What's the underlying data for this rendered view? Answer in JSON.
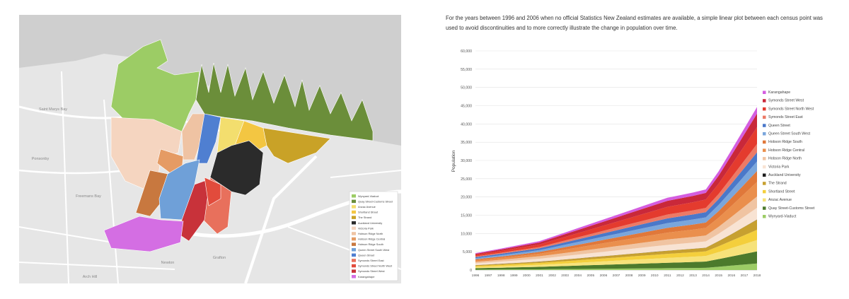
{
  "caption": "For the years between 1996 and 2006 when no official Statistics New Zealand estimates are available, a simple linear plot between each census point was used to avoid discontinuities and to more correctly illustrate the change in population over time.",
  "map": {
    "place_labels": [
      "Saint Marys Bay",
      "Ponsonby",
      "Freemans Bay",
      "Newton",
      "Grafton",
      "Arch Hill"
    ],
    "legend": [
      {
        "name": "Wynyard-Viaduct",
        "color": "#9ccc65"
      },
      {
        "name": "Quay Street-Customs Street",
        "color": "#6b8e3a"
      },
      {
        "name": "Anzac Avenue",
        "color": "#f3de6e"
      },
      {
        "name": "Shortland Street",
        "color": "#f3c642"
      },
      {
        "name": "The Strand",
        "color": "#c9a227"
      },
      {
        "name": "Auckland University",
        "color": "#2b2b2b"
      },
      {
        "name": "Victoria Park",
        "color": "#f5d5c0"
      },
      {
        "name": "Hobson Ridge North",
        "color": "#efc3a3"
      },
      {
        "name": "Hobson Ridge Central",
        "color": "#e59b64"
      },
      {
        "name": "Hobson Ridge South",
        "color": "#c8783f"
      },
      {
        "name": "Queen Street South West",
        "color": "#6fa0d8"
      },
      {
        "name": "Queen Street",
        "color": "#4f7fd1"
      },
      {
        "name": "Symonds Street East",
        "color": "#e8705c"
      },
      {
        "name": "Symonds Street North West",
        "color": "#e24b3c"
      },
      {
        "name": "Symonds Street West",
        "color": "#c8323a"
      },
      {
        "name": "Karangahape",
        "color": "#d46ee3"
      }
    ]
  },
  "chart_data": {
    "type": "area",
    "stacked": true,
    "ylabel": "Population",
    "xlabel": "",
    "ylim": [
      0,
      60000
    ],
    "yticks": [
      "0",
      "5,000",
      "10,000",
      "15,000",
      "20,000",
      "25,000",
      "30,000",
      "35,000",
      "40,000",
      "45,000",
      "50,000",
      "55,000",
      "60,000"
    ],
    "x": [
      "1996",
      "1997",
      "1998",
      "1999",
      "2000",
      "2001",
      "2002",
      "2003",
      "2004",
      "2005",
      "2006",
      "2007",
      "2008",
      "2009",
      "2010",
      "2011",
      "2012",
      "2013",
      "2014",
      "2015",
      "2016",
      "2017",
      "2018"
    ],
    "legend_position": "right",
    "grid": true,
    "series": [
      {
        "name": "Wynyard-Viaduct",
        "color": "#9ccc65",
        "values": [
          100,
          120,
          140,
          160,
          180,
          200,
          230,
          260,
          290,
          320,
          350,
          380,
          410,
          440,
          470,
          500,
          530,
          560,
          600,
          900,
          1200,
          1500,
          1800
        ]
      },
      {
        "name": "Quay Street-Customs Street",
        "color": "#4c7a2c",
        "values": [
          400,
          450,
          500,
          560,
          620,
          680,
          760,
          840,
          920,
          1000,
          1080,
          1160,
          1240,
          1320,
          1400,
          1480,
          1560,
          1640,
          1720,
          2100,
          2500,
          2900,
          3300
        ]
      },
      {
        "name": "Anzac Avenue",
        "color": "#f6e27a",
        "values": [
          300,
          350,
          400,
          450,
          500,
          550,
          620,
          700,
          780,
          860,
          940,
          1020,
          1100,
          1180,
          1260,
          1340,
          1400,
          1460,
          1520,
          1900,
          2300,
          2700,
          3100
        ]
      },
      {
        "name": "Shortland Street",
        "color": "#f4cf3c",
        "values": [
          300,
          340,
          380,
          420,
          460,
          500,
          560,
          620,
          680,
          740,
          800,
          860,
          920,
          980,
          1040,
          1100,
          1150,
          1200,
          1260,
          1600,
          2000,
          2400,
          2800
        ]
      },
      {
        "name": "The Strand",
        "color": "#c7a030",
        "values": [
          200,
          230,
          260,
          290,
          320,
          350,
          400,
          450,
          500,
          550,
          600,
          650,
          700,
          750,
          800,
          850,
          900,
          950,
          1000,
          1400,
          1800,
          2300,
          2800
        ]
      },
      {
        "name": "Auckland University",
        "color": "#1e1e1e",
        "values": [
          30,
          30,
          30,
          30,
          30,
          30,
          30,
          30,
          30,
          30,
          30,
          30,
          30,
          30,
          30,
          30,
          30,
          30,
          30,
          30,
          30,
          30,
          30
        ]
      },
      {
        "name": "Victoria Park",
        "color": "#f8e3d3",
        "values": [
          500,
          550,
          600,
          660,
          720,
          780,
          860,
          940,
          1020,
          1100,
          1180,
          1260,
          1340,
          1420,
          1500,
          1580,
          1620,
          1660,
          1700,
          2000,
          2400,
          2800,
          3200
        ]
      },
      {
        "name": "Hobson Ridge North",
        "color": "#f0c4a2",
        "values": [
          400,
          450,
          500,
          560,
          620,
          680,
          760,
          840,
          920,
          1000,
          1080,
          1160,
          1240,
          1320,
          1400,
          1480,
          1520,
          1560,
          1620,
          1900,
          2300,
          2700,
          3100
        ]
      },
      {
        "name": "Hobson Ridge Central",
        "color": "#ea8f4d",
        "values": [
          400,
          450,
          500,
          560,
          620,
          680,
          800,
          920,
          1040,
          1160,
          1280,
          1400,
          1520,
          1640,
          1760,
          1880,
          1940,
          2000,
          2100,
          2500,
          3000,
          3500,
          4000
        ]
      },
      {
        "name": "Hobson Ridge South",
        "color": "#e0783a",
        "values": [
          300,
          340,
          380,
          420,
          460,
          500,
          580,
          660,
          740,
          820,
          900,
          980,
          1060,
          1140,
          1220,
          1300,
          1350,
          1400,
          1460,
          1800,
          2200,
          2600,
          3000
        ]
      },
      {
        "name": "Queen Street South West",
        "color": "#7aa6dc",
        "values": [
          300,
          340,
          380,
          420,
          460,
          500,
          580,
          660,
          740,
          820,
          900,
          980,
          1060,
          1140,
          1220,
          1300,
          1340,
          1380,
          1420,
          1700,
          2000,
          2300,
          2600
        ]
      },
      {
        "name": "Queen Street",
        "color": "#4a78c9",
        "values": [
          300,
          340,
          380,
          420,
          460,
          500,
          580,
          660,
          740,
          820,
          900,
          980,
          1060,
          1140,
          1220,
          1300,
          1340,
          1380,
          1420,
          1600,
          1900,
          2200,
          2500
        ]
      },
      {
        "name": "Symonds Street East",
        "color": "#ec7a66",
        "values": [
          200,
          230,
          260,
          290,
          320,
          350,
          420,
          490,
          560,
          630,
          700,
          770,
          840,
          910,
          980,
          1050,
          1080,
          1110,
          1150,
          1400,
          1700,
          2000,
          2300
        ]
      },
      {
        "name": "Symonds Street North West",
        "color": "#e43b2e",
        "values": [
          400,
          460,
          520,
          580,
          640,
          700,
          840,
          980,
          1120,
          1260,
          1400,
          1540,
          1680,
          1820,
          1960,
          2100,
          2160,
          2220,
          2300,
          2800,
          3400,
          4000,
          4600
        ]
      },
      {
        "name": "Symonds Street West",
        "color": "#c9283a",
        "values": [
          300,
          350,
          400,
          450,
          500,
          550,
          660,
          770,
          880,
          990,
          1100,
          1210,
          1320,
          1430,
          1540,
          1650,
          1700,
          1750,
          1820,
          2200,
          2700,
          3200,
          3700
        ]
      },
      {
        "name": "Karangahape",
        "color": "#d45ee0",
        "values": [
          200,
          230,
          260,
          290,
          320,
          350,
          400,
          450,
          500,
          550,
          600,
          650,
          700,
          750,
          800,
          850,
          880,
          910,
          950,
          1200,
          1400,
          1600,
          1800
        ]
      }
    ]
  }
}
